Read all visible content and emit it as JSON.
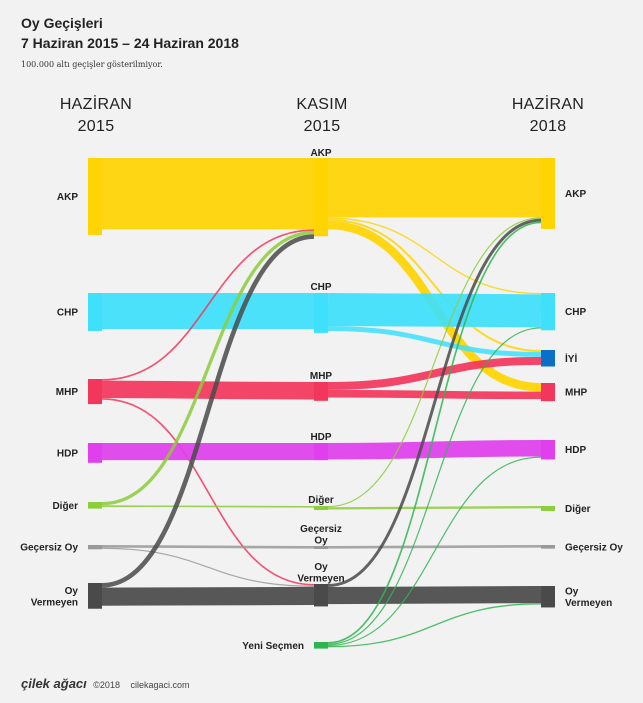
{
  "title": {
    "line1": "Oy Geçişleri",
    "line2": "7 Haziran 2015 – 24 Haziran 2018",
    "note": "100.000 altı geçişler gösterilmiyor."
  },
  "columns": [
    {
      "id": "c0",
      "label_top": "HAZİRAN",
      "label_bottom": "2015"
    },
    {
      "id": "c1",
      "label_top": "KASIM",
      "label_bottom": "2015"
    },
    {
      "id": "c2",
      "label_top": "HAZİRAN",
      "label_bottom": "2018"
    }
  ],
  "colors": {
    "AKP": "#ffd400",
    "CHP": "#3ee0fb",
    "MHP": "#f3365c",
    "HDP": "#df3fec",
    "IYI": "#0a6fc9",
    "DIGER": "#8ccd3a",
    "GECERSIZ": "#999999",
    "VERMEYEN": "#4a4a4a",
    "YENI": "#2fb550"
  },
  "nodes": {
    "c0": [
      {
        "id": "AKP",
        "label": "AKP",
        "color": "AKP",
        "value": 23.3
      },
      {
        "id": "CHP",
        "label": "CHP",
        "color": "CHP",
        "value": 11.5
      },
      {
        "id": "MHP",
        "label": "MHP",
        "color": "MHP",
        "value": 7.6
      },
      {
        "id": "HDP",
        "label": "HDP",
        "color": "HDP",
        "value": 6.0
      },
      {
        "id": "DIGER",
        "label": "Diğer",
        "color": "DIGER",
        "value": 2.0
      },
      {
        "id": "GECERSIZ",
        "label": "Geçersiz Oy",
        "color": "GECERSIZ",
        "value": 1.3
      },
      {
        "id": "VERMEYEN",
        "label": "Oy Vermeyen",
        "color": "VERMEYEN",
        "value": 7.8
      }
    ],
    "c1": [
      {
        "id": "AKP",
        "label": "AKP",
        "color": "AKP",
        "value": 23.7
      },
      {
        "id": "CHP",
        "label": "CHP",
        "color": "CHP",
        "value": 12.1
      },
      {
        "id": "MHP",
        "label": "MHP",
        "color": "MHP",
        "value": 5.7
      },
      {
        "id": "HDP",
        "label": "HDP",
        "color": "HDP",
        "value": 5.2
      },
      {
        "id": "DIGER",
        "label": "Diğer",
        "color": "DIGER",
        "value": 1.2
      },
      {
        "id": "GECERSIZ",
        "label": "Geçersiz Oy",
        "color": "GECERSIZ",
        "value": 0.9
      },
      {
        "id": "VERMEYEN",
        "label": "Oy Vermeyen",
        "color": "VERMEYEN",
        "value": 6.8
      },
      {
        "id": "YENI",
        "label": "Yeni Seçmen",
        "color": "YENI",
        "value": 2.0
      }
    ],
    "c2": [
      {
        "id": "AKP",
        "label": "AKP",
        "color": "AKP",
        "value": 21.5
      },
      {
        "id": "CHP",
        "label": "CHP",
        "color": "CHP",
        "value": 11.3
      },
      {
        "id": "IYI",
        "label": "İYİ",
        "color": "IYI",
        "value": 5.0
      },
      {
        "id": "MHP",
        "label": "MHP",
        "color": "MHP",
        "value": 5.5
      },
      {
        "id": "HDP",
        "label": "HDP",
        "color": "HDP",
        "value": 5.9
      },
      {
        "id": "DIGER",
        "label": "Diğer",
        "color": "DIGER",
        "value": 1.5
      },
      {
        "id": "GECERSIZ",
        "label": "Geçersiz Oy",
        "color": "GECERSIZ",
        "value": 1.1
      },
      {
        "id": "VERMEYEN",
        "label": "Oy Vermeyen",
        "color": "VERMEYEN",
        "value": 6.5
      }
    ]
  },
  "links": [
    {
      "from": "c0.AKP",
      "to": "c1.AKP",
      "value": 21.6
    },
    {
      "from": "c0.CHP",
      "to": "c1.CHP",
      "value": 10.9
    },
    {
      "from": "c0.MHP",
      "to": "c1.MHP",
      "value": 5.3
    },
    {
      "from": "c0.MHP",
      "to": "c1.AKP",
      "value": 0.5
    },
    {
      "from": "c0.MHP",
      "to": "c1.VERMEYEN",
      "value": 0.5
    },
    {
      "from": "c0.HDP",
      "to": "c1.HDP",
      "value": 5.2
    },
    {
      "from": "c0.DIGER",
      "to": "c1.AKP",
      "value": 1.0
    },
    {
      "from": "c0.DIGER",
      "to": "c1.DIGER",
      "value": 0.5
    },
    {
      "from": "c0.GECERSIZ",
      "to": "c1.GECERSIZ",
      "value": 0.8
    },
    {
      "from": "c0.GECERSIZ",
      "to": "c1.VERMEYEN",
      "value": 0.2
    },
    {
      "from": "c0.VERMEYEN",
      "to": "c1.AKP",
      "value": 1.4
    },
    {
      "from": "c0.VERMEYEN",
      "to": "c1.VERMEYEN",
      "value": 5.5
    },
    {
      "from": "c1.AKP",
      "to": "c2.AKP",
      "value": 18.0
    },
    {
      "from": "c1.AKP",
      "to": "c2.MHP",
      "value": 2.6
    },
    {
      "from": "c1.AKP",
      "to": "c2.IYI",
      "value": 0.6
    },
    {
      "from": "c1.AKP",
      "to": "c2.CHP",
      "value": 0.4
    },
    {
      "from": "c1.CHP",
      "to": "c2.CHP",
      "value": 10.0
    },
    {
      "from": "c1.CHP",
      "to": "c2.IYI",
      "value": 1.5
    },
    {
      "from": "c1.MHP",
      "to": "c2.MHP",
      "value": 2.3
    },
    {
      "from": "c1.MHP",
      "to": "c2.IYI",
      "value": 2.4
    },
    {
      "from": "c1.HDP",
      "to": "c2.HDP",
      "value": 5.0
    },
    {
      "from": "c1.DIGER",
      "to": "c2.DIGER",
      "value": 0.7
    },
    {
      "from": "c1.DIGER",
      "to": "c2.AKP",
      "value": 0.3
    },
    {
      "from": "c1.GECERSIZ",
      "to": "c2.GECERSIZ",
      "value": 0.8
    },
    {
      "from": "c1.VERMEYEN",
      "to": "c2.VERMEYEN",
      "value": 5.2
    },
    {
      "from": "c1.VERMEYEN",
      "to": "c2.AKP",
      "value": 0.9
    },
    {
      "from": "c1.YENI",
      "to": "c2.AKP",
      "value": 0.5
    },
    {
      "from": "c1.YENI",
      "to": "c2.CHP",
      "value": 0.3
    },
    {
      "from": "c1.YENI",
      "to": "c2.HDP",
      "value": 0.2
    },
    {
      "from": "c1.YENI",
      "to": "c2.VERMEYEN",
      "value": 0.4
    }
  ],
  "footer": {
    "brand": "çilek ağacı",
    "year": "©2018",
    "site": "cilekagaci.com"
  }
}
